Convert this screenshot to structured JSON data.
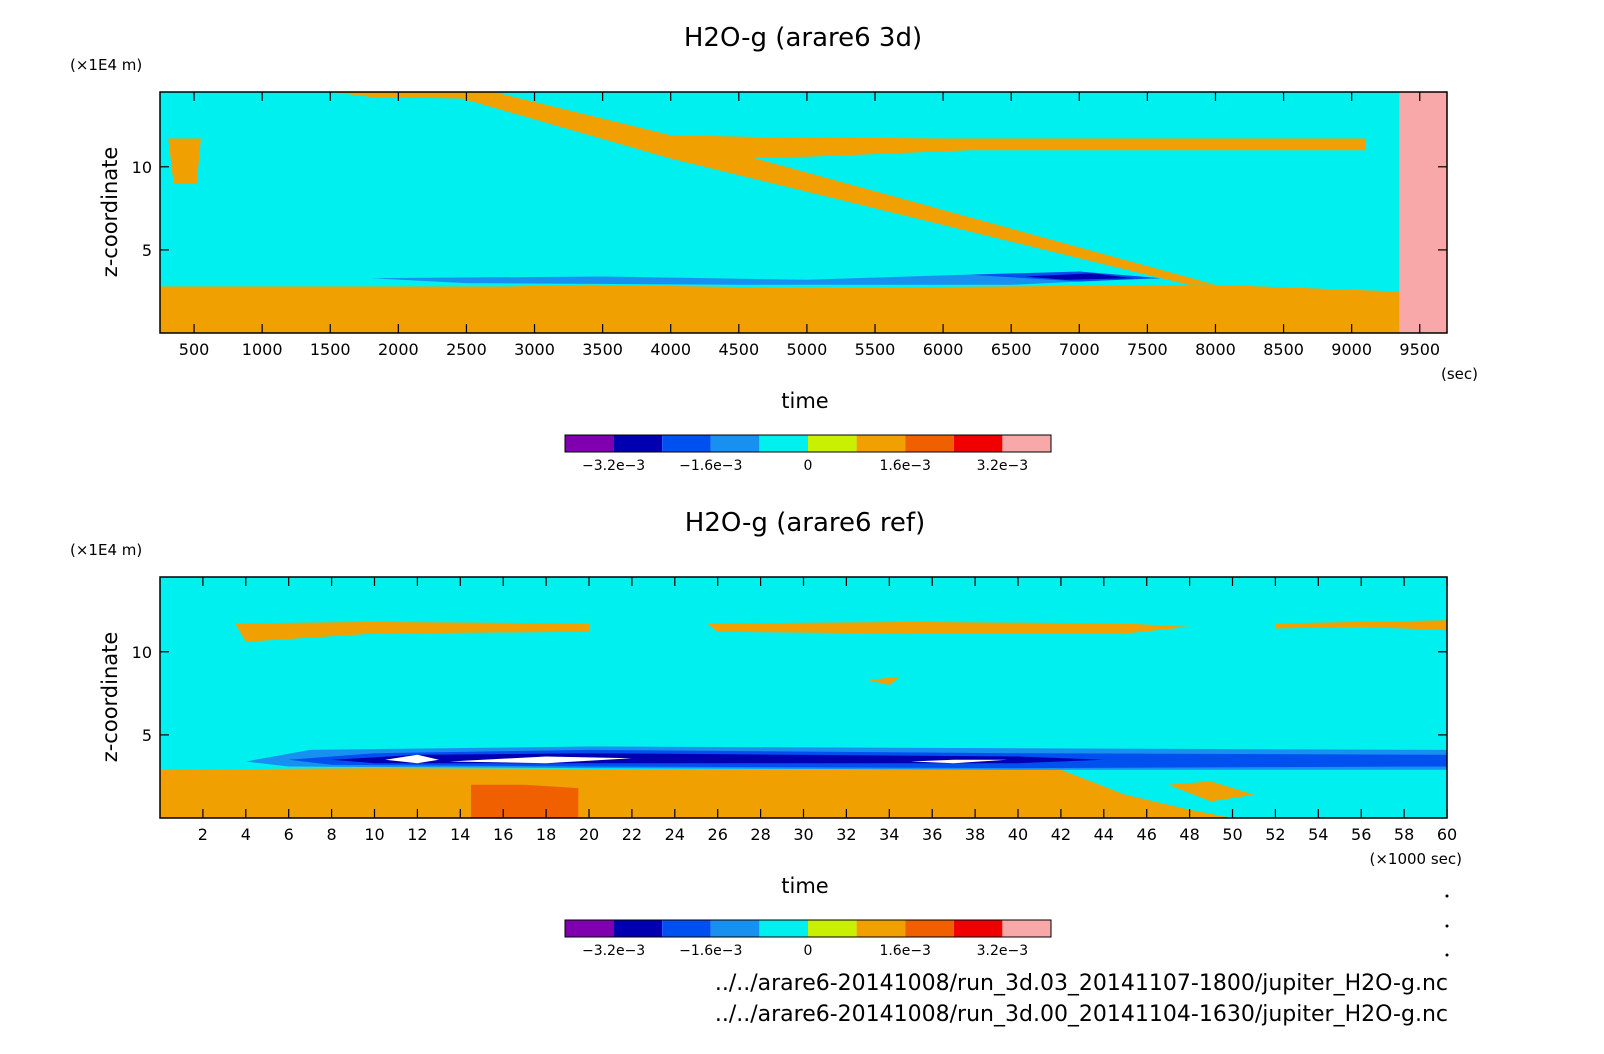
{
  "chart_data": [
    {
      "type": "heatmap",
      "title": "H2O-g (arare6 3d)",
      "xlabel": "time",
      "ylabel": "z-coordinate",
      "x_unit": "(sec)",
      "y_unit": "(×1E4 m)",
      "xlim": [
        250,
        9700
      ],
      "ylim": [
        0,
        14.5
      ],
      "x_ticks": [
        "500",
        "1000",
        "1500",
        "2000",
        "2500",
        "3000",
        "3500",
        "4000",
        "4500",
        "5000",
        "5500",
        "6000",
        "6500",
        "7000",
        "7500",
        "8000",
        "8500",
        "9000",
        "9500"
      ],
      "y_ticks": [
        "5",
        "10"
      ],
      "regions": [
        {
          "level": 0.0008,
          "polygon": [
            [
              250,
              2.8
            ],
            [
              2800,
              2.8
            ],
            [
              3400,
              2.9
            ],
            [
              5000,
              2.7
            ],
            [
              8000,
              2.9
            ],
            [
              9350,
              2.5
            ],
            [
              9350,
              0
            ],
            [
              250,
              0
            ]
          ]
        },
        {
          "level": -0.0008,
          "polygon": [
            [
              1100,
              3.2
            ],
            [
              2200,
              4.2
            ],
            [
              3500,
              4.3
            ],
            [
              4500,
              4.0
            ],
            [
              5500,
              4.3
            ],
            [
              7000,
              4.3
            ],
            [
              7600,
              3.7
            ],
            [
              8400,
              3.8
            ],
            [
              9350,
              4.6
            ],
            [
              9350,
              2.5
            ],
            [
              8000,
              2.9
            ],
            [
              6500,
              3.0
            ],
            [
              4500,
              3.0
            ],
            [
              2500,
              3.0
            ]
          ]
        },
        {
          "level": -0.0016,
          "polygon": [
            [
              1800,
              3.3
            ],
            [
              3500,
              3.4
            ],
            [
              5000,
              3.2
            ],
            [
              6500,
              3.6
            ],
            [
              7500,
              3.3
            ],
            [
              6500,
              2.9
            ],
            [
              4500,
              2.9
            ],
            [
              2500,
              3.0
            ]
          ]
        },
        {
          "level": -0.0024,
          "polygon": [
            [
              6200,
              3.5
            ],
            [
              7000,
              3.7
            ],
            [
              7600,
              3.3
            ],
            [
              7000,
              3.1
            ]
          ]
        },
        {
          "level": -0.0032,
          "polygon": [
            [
              6600,
              3.4
            ],
            [
              7100,
              3.6
            ],
            [
              7400,
              3.3
            ],
            [
              6900,
              3.2
            ]
          ]
        },
        {
          "level": 0.0008,
          "polygon": [
            [
              2300,
              14.5
            ],
            [
              2700,
              14.5
            ],
            [
              4000,
              11.9
            ],
            [
              8000,
              2.9
            ],
            [
              7800,
              2.9
            ],
            [
              4000,
              10.5
            ]
          ]
        },
        {
          "level": 0.0008,
          "polygon": [
            [
              4000,
              11.9
            ],
            [
              4600,
              11.8
            ],
            [
              6000,
              11.7
            ],
            [
              9100,
              11.7
            ],
            [
              9100,
              11.0
            ],
            [
              6200,
              11.0
            ],
            [
              5000,
              10.6
            ],
            [
              4000,
              10.5
            ]
          ]
        },
        {
          "level": 0.0008,
          "polygon": [
            [
              310,
              11.7
            ],
            [
              550,
              11.7
            ],
            [
              520,
              9.0
            ],
            [
              350,
              9.0
            ]
          ]
        },
        {
          "level": 0.0008,
          "polygon": [
            [
              1500,
              14.5
            ],
            [
              2700,
              14.5
            ],
            [
              2500,
              14.1
            ],
            [
              1800,
              14.2
            ]
          ]
        },
        {
          "level": 0.0032,
          "polygon": [
            [
              9350,
              14.5
            ],
            [
              9700,
              14.5
            ],
            [
              9700,
              0
            ],
            [
              9350,
              0
            ]
          ]
        }
      ]
    },
    {
      "type": "heatmap",
      "title": "H2O-g (arare6 ref)",
      "xlabel": "time",
      "ylabel": "z-coordinate",
      "x_unit": "(×1000 sec)",
      "y_unit": "(×1E4 m)",
      "xlim": [
        0,
        60
      ],
      "ylim": [
        0,
        14.5
      ],
      "x_ticks": [
        "2",
        "4",
        "6",
        "8",
        "10",
        "12",
        "14",
        "16",
        "18",
        "20",
        "22",
        "24",
        "26",
        "28",
        "30",
        "32",
        "34",
        "36",
        "38",
        "40",
        "42",
        "44",
        "46",
        "48",
        "50",
        "52",
        "54",
        "56",
        "58",
        "60"
      ],
      "y_ticks": [
        "5",
        "10"
      ],
      "regions": [
        {
          "level": 0.0008,
          "polygon": [
            [
              0,
              2.9
            ],
            [
              10,
              3.0
            ],
            [
              30,
              2.9
            ],
            [
              42,
              2.9
            ],
            [
              45,
              1.4
            ],
            [
              48,
              0.5
            ],
            [
              50,
              0
            ],
            [
              0,
              0
            ]
          ]
        },
        {
          "level": 0.0008,
          "polygon": [
            [
              47,
              2.0
            ],
            [
              49,
              2.2
            ],
            [
              51,
              1.4
            ],
            [
              49,
              1.0
            ]
          ]
        },
        {
          "level": 0.0016,
          "polygon": [
            [
              14.5,
              2.0
            ],
            [
              17,
              2.0
            ],
            [
              19.5,
              1.8
            ],
            [
              19.5,
              0
            ],
            [
              14.5,
              0
            ]
          ]
        },
        {
          "level": -0.0008,
          "polygon": [
            [
              1,
              3.0
            ],
            [
              2.5,
              4.2
            ],
            [
              6,
              4.7
            ],
            [
              20,
              4.8
            ],
            [
              40,
              4.8
            ],
            [
              60,
              4.7
            ],
            [
              60,
              2.8
            ],
            [
              40,
              2.9
            ],
            [
              20,
              3.0
            ],
            [
              5,
              3.0
            ]
          ]
        },
        {
          "level": -0.0016,
          "polygon": [
            [
              4,
              3.4
            ],
            [
              7,
              4.1
            ],
            [
              20,
              4.3
            ],
            [
              40,
              4.2
            ],
            [
              60,
              4.1
            ],
            [
              60,
              2.9
            ],
            [
              40,
              2.9
            ],
            [
              20,
              3.0
            ],
            [
              6,
              3.1
            ]
          ]
        },
        {
          "level": -0.0024,
          "polygon": [
            [
              6,
              3.5
            ],
            [
              10,
              3.9
            ],
            [
              20,
              4.1
            ],
            [
              40,
              3.9
            ],
            [
              60,
              3.8
            ],
            [
              60,
              3.1
            ],
            [
              40,
              3.0
            ],
            [
              20,
              3.1
            ],
            [
              8,
              3.2
            ]
          ]
        },
        {
          "level": -0.0032,
          "polygon": [
            [
              8,
              3.5
            ],
            [
              12,
              3.8
            ],
            [
              20,
              3.9
            ],
            [
              40,
              3.7
            ],
            [
              44,
              3.5
            ],
            [
              40,
              3.3
            ],
            [
              20,
              3.3
            ],
            [
              10,
              3.3
            ]
          ]
        },
        {
          "level": 0.004,
          "polygon": [
            [
              10.5,
              3.5
            ],
            [
              12,
              3.8
            ],
            [
              13,
              3.5
            ],
            [
              12,
              3.3
            ]
          ]
        },
        {
          "level": 0.004,
          "polygon": [
            [
              13.5,
              3.4
            ],
            [
              18,
              3.7
            ],
            [
              22,
              3.6
            ],
            [
              18,
              3.3
            ]
          ]
        },
        {
          "level": 0.004,
          "polygon": [
            [
              35,
              3.4
            ],
            [
              37,
              3.5
            ],
            [
              39.5,
              3.5
            ],
            [
              37,
              3.3
            ]
          ]
        },
        {
          "level": 0.0008,
          "polygon": [
            [
              3.5,
              11.7
            ],
            [
              10,
              11.8
            ],
            [
              20,
              11.7
            ],
            [
              20,
              11.2
            ],
            [
              10,
              11.1
            ],
            [
              4,
              10.6
            ]
          ]
        },
        {
          "level": 0.0008,
          "polygon": [
            [
              25.5,
              11.7
            ],
            [
              35,
              11.8
            ],
            [
              45,
              11.7
            ],
            [
              48,
              11.5
            ],
            [
              45,
              11.1
            ],
            [
              35,
              11.1
            ],
            [
              26,
              11.2
            ]
          ]
        },
        {
          "level": 0.0008,
          "polygon": [
            [
              52,
              11.7
            ],
            [
              56,
              11.8
            ],
            [
              60,
              11.9
            ],
            [
              60,
              11.3
            ],
            [
              56,
              11.5
            ],
            [
              52,
              11.4
            ]
          ]
        },
        {
          "level": 0.0008,
          "polygon": [
            [
              33,
              8.3
            ],
            [
              34.5,
              8.5
            ],
            [
              34,
              8.0
            ]
          ]
        }
      ]
    }
  ],
  "colorbar": {
    "levels": [
      -0.004,
      -0.0032,
      -0.0024,
      -0.0016,
      -0.0008,
      0,
      0.0008,
      0.0016,
      0.0024,
      0.0032,
      0.004
    ],
    "colors": [
      "#8000b0",
      "#0000b0",
      "#0050f0",
      "#1890f0",
      "#00f0f0",
      "#c8f000",
      "#f0a000",
      "#f06000",
      "#f00000",
      "#f8a8a8"
    ],
    "background": "#00f0f0",
    "above_max": "#ffffff",
    "tick_labels": [
      {
        "value": -0.0032,
        "label": "−3.2e−3"
      },
      {
        "value": -0.0016,
        "label": "−1.6e−3"
      },
      {
        "value": 0,
        "label": "0"
      },
      {
        "value": 0.0016,
        "label": "1.6e−3"
      },
      {
        "value": 0.0032,
        "label": "3.2e−3"
      }
    ]
  },
  "file_paths": [
    "../../arare6-20141008/run_3d.03_20141107-1800/jupiter_H2O-g.nc",
    "../../arare6-20141008/run_3d.00_20141104-1630/jupiter_H2O-g.nc"
  ]
}
